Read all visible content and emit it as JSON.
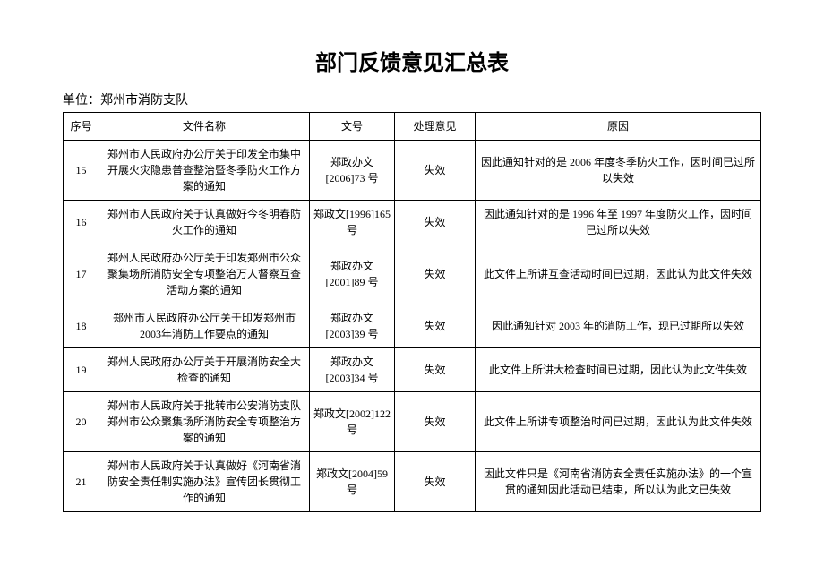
{
  "title": "部门反馈意见汇总表",
  "unit_label": "单位：",
  "unit_name": "郑州市消防支队",
  "columns": {
    "seq": "序号",
    "name": "文件名称",
    "docno": "文号",
    "opinion": "处理意见",
    "reason": "原因"
  },
  "rows": [
    {
      "seq": "15",
      "name": "郑州市人民政府办公厅关于印发全市集中开展火灾隐患普查整治暨冬季防火工作方案的通知",
      "docno": "郑政办文[2006]73 号",
      "opinion": "失效",
      "reason": "因此通知针对的是 2006 年度冬季防火工作，因时间已过所以失效"
    },
    {
      "seq": "16",
      "name": "郑州市人民政府关于认真做好今冬明春防火工作的通知",
      "docno": "郑政文[1996]165 号",
      "opinion": "失效",
      "reason": "因此通知针对的是 1996 年至 1997 年度防火工作，因时间已过所以失效"
    },
    {
      "seq": "17",
      "name": "郑州人民政府办公厅关于印发郑州市公众聚集场所消防安全专项整治万人督察互查活动方案的通知",
      "docno": "郑政办文[2001]89 号",
      "opinion": "失效",
      "reason": "此文件上所讲互查活动时间已过期，因此认为此文件失效"
    },
    {
      "seq": "18",
      "name": "郑州市人民政府办公厅关于印发郑州市 2003年消防工作要点的通知",
      "docno": "郑政办文[2003]39 号",
      "opinion": "失效",
      "reason": "因此通知针对 2003 年的消防工作，现已过期所以失效"
    },
    {
      "seq": "19",
      "name": "郑州人民政府办公厅关于开展消防安全大检查的通知",
      "docno": "郑政办文[2003]34 号",
      "opinion": "失效",
      "reason": "此文件上所讲大检查时间已过期，因此认为此文件失效"
    },
    {
      "seq": "20",
      "name": "郑州市人民政府关于批转市公安消防支队郑州市公众聚集场所消防安全专项整治方案的通知",
      "docno": "郑政文[2002]122 号",
      "opinion": "失效",
      "reason": "此文件上所讲专项整治时间已过期，因此认为此文件失效"
    },
    {
      "seq": "21",
      "name": "郑州市人民政府关于认真做好《河南省消防安全责任制实施办法》宣传团长贯彻工作的通知",
      "docno": "郑政文[2004]59号",
      "opinion": "失效",
      "reason": "因此文件只是《河南省消防安全责任实施办法》的一个宣贯的通知因此活动已结束，所以认为此文已失效"
    }
  ],
  "styles": {
    "background_color": "#ffffff",
    "text_color": "#000000",
    "border_color": "#000000",
    "title_fontsize": 24,
    "body_fontsize": 12,
    "unit_fontsize": 14,
    "font_family": "SimSun"
  }
}
